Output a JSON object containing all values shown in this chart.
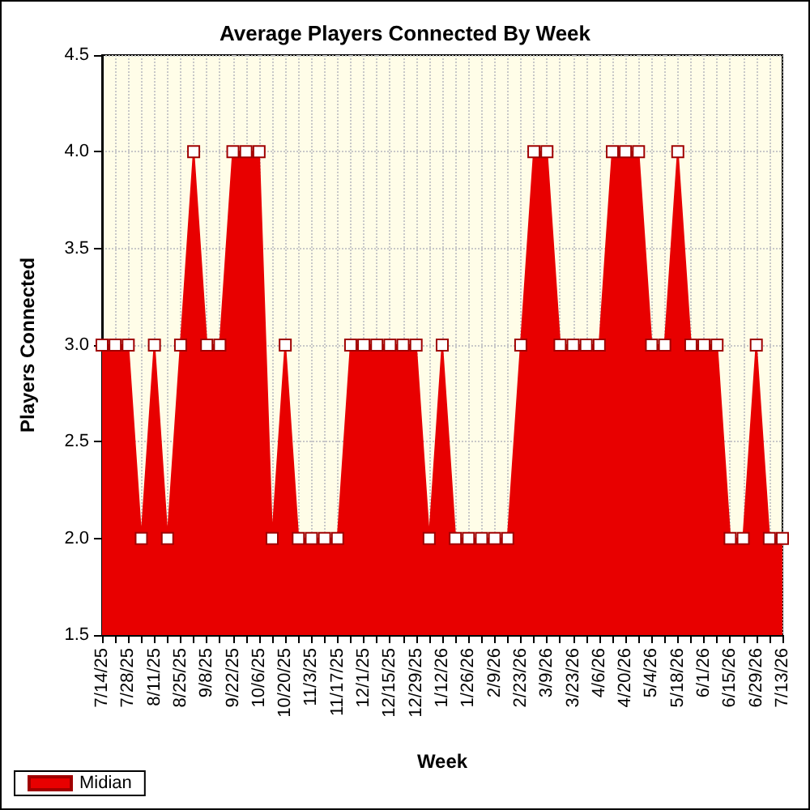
{
  "chart_data": {
    "type": "area",
    "title": "Average Players Connected By Week",
    "xlabel": "Week",
    "ylabel": "Players Connected",
    "categories": [
      "7/14/25",
      null,
      "7/28/25",
      null,
      "8/11/25",
      null,
      "8/25/25",
      null,
      "9/8/25",
      null,
      "9/22/25",
      null,
      "10/6/25",
      null,
      "10/20/25",
      null,
      "11/3/25",
      null,
      "11/17/25",
      null,
      "12/1/25",
      null,
      "12/15/25",
      null,
      "12/29/25",
      null,
      "1/12/26",
      null,
      "1/26/26",
      null,
      "2/9/26",
      null,
      "2/23/26",
      null,
      "3/9/26",
      null,
      "3/23/26",
      null,
      "4/6/26",
      null,
      "4/20/26",
      null,
      "5/4/26",
      null,
      "5/18/26",
      null,
      "6/1/26",
      null,
      "6/15/26",
      null,
      "6/29/26",
      null,
      "7/13/26"
    ],
    "series": [
      {
        "name": "Midian",
        "color": "#e80000",
        "values": [
          3,
          3,
          3,
          2,
          3,
          2,
          3,
          4,
          3,
          3,
          4,
          4,
          4,
          2,
          3,
          2,
          2,
          2,
          2,
          3,
          3,
          3,
          3,
          3,
          3,
          2,
          3,
          2,
          2,
          2,
          2,
          2,
          3,
          4,
          4,
          3,
          3,
          3,
          3,
          4,
          4,
          4,
          3,
          3,
          4,
          3,
          3,
          3,
          2,
          2,
          3,
          2,
          2
        ]
      }
    ],
    "ylim": [
      1.5,
      4.5
    ],
    "yticks": [
      1.5,
      {
        "value": 2,
        "label": "2.0"
      },
      2.5,
      {
        "value": 3,
        "label": "3.0"
      },
      3.5,
      {
        "value": 4,
        "label": "4.0"
      },
      4.5
    ],
    "grid": true,
    "legend": "bottom left",
    "marker": "square"
  }
}
